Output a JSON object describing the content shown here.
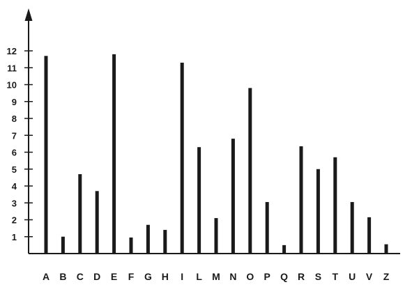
{
  "chart_data": {
    "type": "bar",
    "title": "",
    "xlabel": "",
    "ylabel": "",
    "ylim": [
      0,
      12
    ],
    "yticks": [
      1,
      2,
      3,
      4,
      5,
      6,
      7,
      8,
      9,
      10,
      11,
      12
    ],
    "grid": false,
    "legend": "none",
    "bar_color": "#1a1a1a",
    "categories": [
      "A",
      "B",
      "C",
      "D",
      "E",
      "F",
      "G",
      "H",
      "I",
      "L",
      "M",
      "N",
      "O",
      "P",
      "Q",
      "R",
      "S",
      "T",
      "U",
      "V",
      "Z"
    ],
    "values": [
      11.7,
      1.0,
      4.7,
      3.7,
      11.8,
      0.95,
      1.7,
      1.4,
      11.3,
      6.3,
      2.1,
      6.8,
      9.8,
      3.05,
      0.5,
      6.35,
      5.0,
      5.7,
      3.05,
      2.15,
      0.55
    ]
  }
}
